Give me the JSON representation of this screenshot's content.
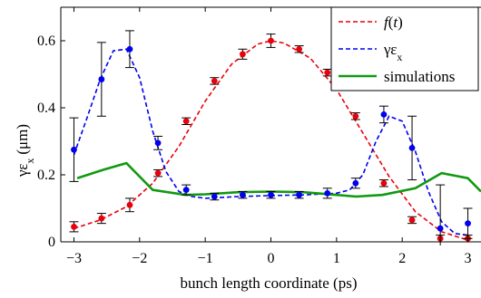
{
  "chart_data": {
    "type": "line",
    "xlabel": "bunch length coordinate (ps)",
    "ylabel": "γε",
    "ylabel_subscript": "x",
    "ylabel_unit": "(μm)",
    "xlim": [
      -3.2,
      3.2
    ],
    "ylim": [
      0,
      0.7
    ],
    "xticks": [
      -3,
      -2,
      -1,
      0,
      1,
      2,
      3
    ],
    "xtick_labels": [
      "−3",
      "−2",
      "−1",
      "0",
      "1",
      "2",
      "3"
    ],
    "yticks": [
      0,
      0.2,
      0.4,
      0.6
    ],
    "ytick_labels": [
      "0",
      "0.2",
      "0.4",
      "0.6"
    ],
    "grid": false,
    "legend_position": "top-right",
    "legend": [
      {
        "label": "f(t)",
        "style": "dashed",
        "color": "#e8000b"
      },
      {
        "label": "γε",
        "subscript": "x",
        "style": "dashed",
        "color": "#0000ee"
      },
      {
        "label": "simulations",
        "style": "solid",
        "color": "#119911"
      }
    ],
    "series": [
      {
        "name": "f(t)",
        "kind": "points",
        "color": "#e8000b",
        "x": [
          -3.0,
          -2.58,
          -2.15,
          -1.72,
          -1.29,
          -0.86,
          -0.43,
          0.0,
          0.43,
          0.86,
          1.29,
          1.72,
          2.15,
          2.58,
          3.0
        ],
        "y": [
          0.045,
          0.07,
          0.11,
          0.205,
          0.36,
          0.48,
          0.56,
          0.6,
          0.575,
          0.505,
          0.375,
          0.175,
          0.065,
          0.01,
          0.01
        ],
        "err": [
          0.015,
          0.015,
          0.02,
          0.01,
          0.01,
          0.01,
          0.015,
          0.02,
          0.01,
          0.01,
          0.01,
          0.01,
          0.01,
          0.01,
          0.01
        ]
      },
      {
        "name": "f(t) fit",
        "kind": "dashed",
        "color": "#e8000b",
        "x": [
          -3.0,
          -2.6,
          -2.2,
          -1.8,
          -1.4,
          -1.0,
          -0.6,
          -0.2,
          0.0,
          0.2,
          0.6,
          1.0,
          1.4,
          1.8,
          2.2,
          2.6,
          3.0
        ],
        "y": [
          0.04,
          0.065,
          0.105,
          0.175,
          0.285,
          0.42,
          0.53,
          0.59,
          0.6,
          0.593,
          0.548,
          0.455,
          0.325,
          0.195,
          0.09,
          0.03,
          0.005
        ]
      },
      {
        "name": "γε_x",
        "kind": "points",
        "color": "#0000ee",
        "x": [
          -3.0,
          -2.58,
          -2.15,
          -1.72,
          -1.29,
          -0.86,
          -0.43,
          0.0,
          0.43,
          0.86,
          1.29,
          1.72,
          2.15,
          2.58,
          3.0
        ],
        "y": [
          0.275,
          0.485,
          0.575,
          0.295,
          0.155,
          0.135,
          0.14,
          0.14,
          0.14,
          0.145,
          0.175,
          0.38,
          0.28,
          0.04,
          0.055
        ],
        "err": [
          0.095,
          0.11,
          0.055,
          0.02,
          0.015,
          0.01,
          0.01,
          0.01,
          0.01,
          0.015,
          0.015,
          0.025,
          0.095,
          0.13,
          0.045
        ]
      },
      {
        "name": "γε_x fit",
        "kind": "dashed",
        "color": "#0000ee",
        "x": [
          -3.0,
          -2.8,
          -2.6,
          -2.4,
          -2.2,
          -2.0,
          -1.8,
          -1.6,
          -1.4,
          -1.2,
          -1.0,
          -0.5,
          0.0,
          0.5,
          1.0,
          1.2,
          1.4,
          1.6,
          1.8,
          2.0,
          2.2,
          2.4,
          2.6,
          2.8,
          3.0
        ],
        "y": [
          0.26,
          0.37,
          0.485,
          0.57,
          0.575,
          0.49,
          0.33,
          0.21,
          0.15,
          0.135,
          0.13,
          0.135,
          0.138,
          0.14,
          0.145,
          0.155,
          0.2,
          0.3,
          0.375,
          0.36,
          0.27,
          0.15,
          0.06,
          0.025,
          0.02
        ]
      },
      {
        "name": "simulations",
        "kind": "solid",
        "color": "#119911",
        "x": [
          -2.95,
          -2.55,
          -2.2,
          -1.8,
          -1.3,
          -1.0,
          -0.5,
          0.0,
          0.5,
          1.0,
          1.3,
          1.7,
          2.2,
          2.6,
          3.0,
          3.2
        ],
        "y": [
          0.19,
          0.215,
          0.235,
          0.155,
          0.14,
          0.142,
          0.148,
          0.15,
          0.148,
          0.14,
          0.135,
          0.14,
          0.16,
          0.205,
          0.19,
          0.15
        ]
      }
    ]
  }
}
